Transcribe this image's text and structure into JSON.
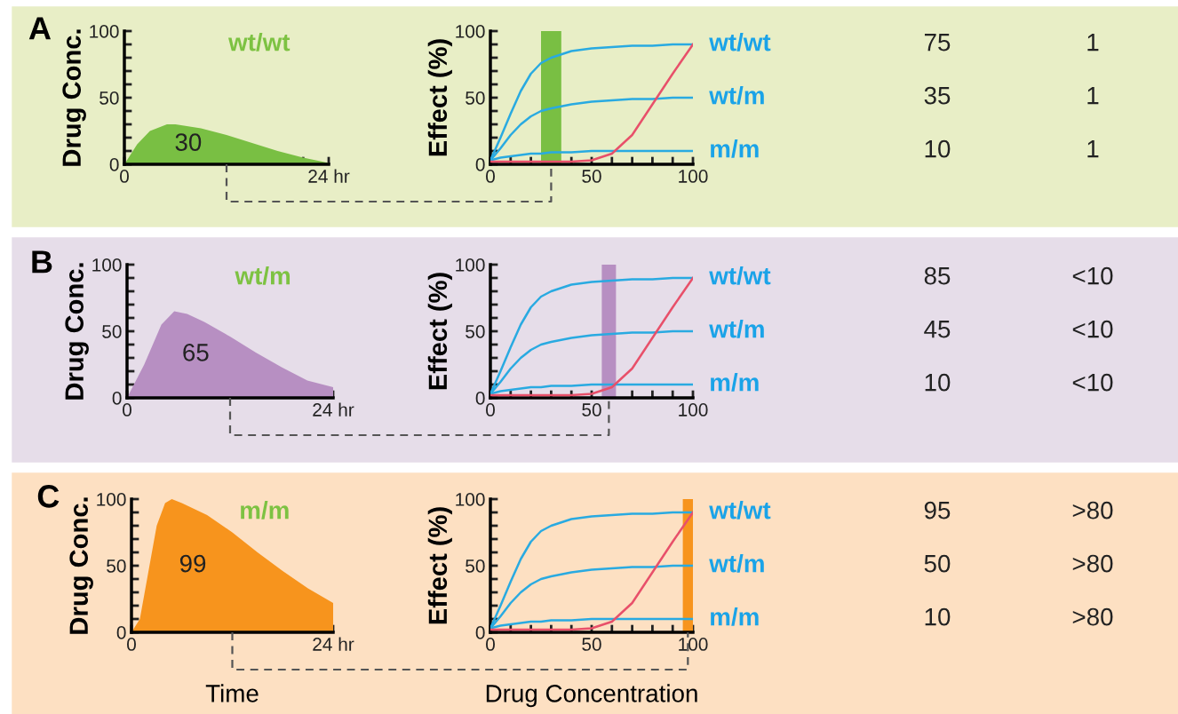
{
  "chart_data": [
    {
      "type": "area",
      "ylabel": "Drug Conc.",
      "annotations": [
        "A",
        "wt/wt",
        "30"
      ],
      "xlim": [
        0,
        24
      ],
      "ylim": [
        0,
        100
      ],
      "xticks": [
        0,
        {
          "value": 3,
          "label": null
        },
        {
          "value": 6,
          "label": null
        },
        {
          "value": 9,
          "label": null
        },
        {
          "value": 12,
          "label": null
        },
        {
          "value": 15,
          "label": null
        },
        {
          "value": 18,
          "label": null
        },
        {
          "value": 21,
          "label": null
        },
        {
          "value": 24,
          "label": "24 hr"
        }
      ],
      "yticks": [
        0,
        {
          "value": 10,
          "label": null
        },
        {
          "value": 20,
          "label": null
        },
        {
          "value": 30,
          "label": null
        },
        {
          "value": 40,
          "label": null
        },
        50,
        {
          "value": 60,
          "label": null
        },
        {
          "value": 70,
          "label": null
        },
        {
          "value": 80,
          "label": null
        },
        {
          "value": 90,
          "label": null
        },
        100
      ],
      "x": [
        0,
        1.5,
        3,
        5,
        6,
        9,
        12,
        15,
        18,
        21,
        24
      ],
      "series": [
        {
          "color": "#79bf43",
          "values": [
            0,
            15,
            25,
            30,
            30,
            27,
            22,
            16,
            10,
            5,
            1
          ]
        }
      ],
      "grid": false,
      "legend": false
    },
    {
      "type": "line",
      "ylabel": "Effect (%)",
      "annotations": [
        "75",
        "1",
        "35",
        "1",
        "10",
        "1"
      ],
      "xlim": [
        0,
        100
      ],
      "ylim": [
        0,
        100
      ],
      "xticks": [
        0,
        {
          "value": 10,
          "label": null
        },
        {
          "value": 20,
          "label": null
        },
        {
          "value": 30,
          "label": null
        },
        {
          "value": 40,
          "label": null
        },
        50,
        {
          "value": 60,
          "label": null
        },
        {
          "value": 70,
          "label": null
        },
        {
          "value": 80,
          "label": null
        },
        {
          "value": 90,
          "label": null
        },
        100
      ],
      "yticks": [
        0,
        {
          "value": 10,
          "label": null
        },
        {
          "value": 20,
          "label": null
        },
        {
          "value": 30,
          "label": null
        },
        {
          "value": 40,
          "label": null
        },
        50,
        {
          "value": 60,
          "label": null
        },
        {
          "value": 70,
          "label": null
        },
        {
          "value": 80,
          "label": null
        },
        {
          "value": 90,
          "label": null
        },
        100
      ],
      "x": [
        0,
        5,
        10,
        15,
        20,
        25,
        30,
        40,
        50,
        60,
        70,
        80,
        90,
        100
      ],
      "series": [
        {
          "name": "wt/wt",
          "color": "#29aae1",
          "values": [
            3,
            20,
            38,
            55,
            68,
            76,
            80,
            85,
            87,
            88,
            89,
            89,
            90,
            90
          ]
        },
        {
          "name": "wt/m",
          "color": "#29aae1",
          "values": [
            3,
            12,
            22,
            30,
            36,
            40,
            42,
            45,
            47,
            48,
            49,
            49,
            50,
            50
          ]
        },
        {
          "name": "m/m",
          "color": "#29aae1",
          "values": [
            3,
            5,
            6,
            7,
            8,
            8,
            9,
            9,
            10,
            10,
            10,
            10,
            10,
            10
          ]
        },
        {
          "color": "#e8506a",
          "values": [
            2,
            2,
            2,
            2,
            2,
            2,
            2,
            2,
            3,
            8,
            22,
            45,
            68,
            90
          ]
        }
      ],
      "bands": [
        {
          "axis": "x",
          "from": 25,
          "to": 35,
          "color": "#79bf43"
        }
      ],
      "marker": "none",
      "line_style": "solid",
      "grid": false,
      "legend": false
    },
    {
      "type": "area",
      "ylabel": "Drug Conc.",
      "annotations": [
        "B",
        "wt/m",
        "65"
      ],
      "xlim": [
        0,
        24
      ],
      "ylim": [
        0,
        100
      ],
      "xticks": [
        0,
        {
          "value": 3,
          "label": null
        },
        {
          "value": 6,
          "label": null
        },
        {
          "value": 9,
          "label": null
        },
        {
          "value": 12,
          "label": null
        },
        {
          "value": 15,
          "label": null
        },
        {
          "value": 18,
          "label": null
        },
        {
          "value": 21,
          "label": null
        },
        {
          "value": 24,
          "label": "24 hr"
        }
      ],
      "yticks": [
        0,
        {
          "value": 10,
          "label": null
        },
        {
          "value": 20,
          "label": null
        },
        {
          "value": 30,
          "label": null
        },
        {
          "value": 40,
          "label": null
        },
        50,
        {
          "value": 60,
          "label": null
        },
        {
          "value": 70,
          "label": null
        },
        {
          "value": 80,
          "label": null
        },
        {
          "value": 90,
          "label": null
        },
        100
      ],
      "x": [
        0,
        2,
        4,
        5.5,
        7,
        9,
        12,
        15,
        18,
        21,
        24
      ],
      "series": [
        {
          "color": "#b78fc2",
          "values": [
            0,
            25,
            55,
            65,
            63,
            57,
            46,
            34,
            23,
            13,
            8
          ]
        }
      ],
      "grid": false,
      "legend": false
    },
    {
      "type": "line",
      "ylabel": "Effect (%)",
      "annotations": [
        "85",
        "<10",
        "45",
        "<10",
        "10",
        "<10"
      ],
      "xlim": [
        0,
        100
      ],
      "ylim": [
        0,
        100
      ],
      "xticks": [
        0,
        {
          "value": 10,
          "label": null
        },
        {
          "value": 20,
          "label": null
        },
        {
          "value": 30,
          "label": null
        },
        {
          "value": 40,
          "label": null
        },
        50,
        {
          "value": 60,
          "label": null
        },
        {
          "value": 70,
          "label": null
        },
        {
          "value": 80,
          "label": null
        },
        {
          "value": 90,
          "label": null
        },
        100
      ],
      "yticks": [
        0,
        {
          "value": 10,
          "label": null
        },
        {
          "value": 20,
          "label": null
        },
        {
          "value": 30,
          "label": null
        },
        {
          "value": 40,
          "label": null
        },
        50,
        {
          "value": 60,
          "label": null
        },
        {
          "value": 70,
          "label": null
        },
        {
          "value": 80,
          "label": null
        },
        {
          "value": 90,
          "label": null
        },
        100
      ],
      "x": [
        0,
        5,
        10,
        15,
        20,
        25,
        30,
        40,
        50,
        60,
        70,
        80,
        90,
        100
      ],
      "series": [
        {
          "name": "wt/wt",
          "color": "#29aae1",
          "values": [
            3,
            20,
            38,
            55,
            68,
            76,
            80,
            85,
            87,
            88,
            89,
            89,
            90,
            90
          ]
        },
        {
          "name": "wt/m",
          "color": "#29aae1",
          "values": [
            3,
            12,
            22,
            30,
            36,
            40,
            42,
            45,
            47,
            48,
            49,
            49,
            50,
            50
          ]
        },
        {
          "name": "m/m",
          "color": "#29aae1",
          "values": [
            3,
            5,
            6,
            7,
            8,
            8,
            9,
            9,
            10,
            10,
            10,
            10,
            10,
            10
          ]
        },
        {
          "color": "#e8506a",
          "values": [
            2,
            2,
            2,
            2,
            2,
            2,
            2,
            2,
            3,
            8,
            22,
            45,
            68,
            90
          ]
        }
      ],
      "bands": [
        {
          "axis": "x",
          "from": 55,
          "to": 62,
          "color": "#b78fc2"
        }
      ],
      "marker": "none",
      "line_style": "solid",
      "grid": false,
      "legend": false
    },
    {
      "type": "area",
      "xlabel": "Time",
      "ylabel": "Drug Conc.",
      "annotations": [
        "C",
        "m/m",
        "99"
      ],
      "xlim": [
        0,
        24
      ],
      "ylim": [
        0,
        100
      ],
      "xticks": [
        0,
        {
          "value": 3,
          "label": null
        },
        {
          "value": 6,
          "label": null
        },
        {
          "value": 9,
          "label": null
        },
        {
          "value": 12,
          "label": null
        },
        {
          "value": 15,
          "label": null
        },
        {
          "value": 18,
          "label": null
        },
        {
          "value": 21,
          "label": null
        },
        {
          "value": 24,
          "label": "24 hr"
        }
      ],
      "yticks": [
        0,
        {
          "value": 10,
          "label": null
        },
        {
          "value": 20,
          "label": null
        },
        {
          "value": 30,
          "label": null
        },
        {
          "value": 40,
          "label": null
        },
        50,
        {
          "value": 60,
          "label": null
        },
        {
          "value": 70,
          "label": null
        },
        {
          "value": 80,
          "label": null
        },
        {
          "value": 90,
          "label": null
        },
        100
      ],
      "x": [
        0,
        1,
        2,
        3,
        4,
        4.8,
        6,
        9,
        12,
        15,
        18,
        21,
        24
      ],
      "series": [
        {
          "color": "#f7941d",
          "values": [
            0,
            10,
            45,
            80,
            97,
            100,
            97,
            88,
            75,
            60,
            46,
            33,
            22
          ]
        }
      ],
      "grid": false,
      "legend": false
    },
    {
      "type": "line",
      "xlabel": "Drug Concentration",
      "ylabel": "Effect (%)",
      "annotations": [
        "95",
        ">80",
        "50",
        ">80",
        "10",
        ">80"
      ],
      "xlim": [
        0,
        100
      ],
      "ylim": [
        0,
        100
      ],
      "xticks": [
        0,
        {
          "value": 10,
          "label": null
        },
        {
          "value": 20,
          "label": null
        },
        {
          "value": 30,
          "label": null
        },
        {
          "value": 40,
          "label": null
        },
        50,
        {
          "value": 60,
          "label": null
        },
        {
          "value": 70,
          "label": null
        },
        {
          "value": 80,
          "label": null
        },
        {
          "value": 90,
          "label": null
        },
        100
      ],
      "yticks": [
        0,
        {
          "value": 10,
          "label": null
        },
        {
          "value": 20,
          "label": null
        },
        {
          "value": 30,
          "label": null
        },
        {
          "value": 40,
          "label": null
        },
        50,
        {
          "value": 60,
          "label": null
        },
        {
          "value": 70,
          "label": null
        },
        {
          "value": 80,
          "label": null
        },
        {
          "value": 90,
          "label": null
        },
        100
      ],
      "x": [
        0,
        5,
        10,
        15,
        20,
        25,
        30,
        40,
        50,
        60,
        70,
        80,
        90,
        100
      ],
      "series": [
        {
          "name": "wt/wt",
          "color": "#29aae1",
          "values": [
            3,
            20,
            38,
            55,
            68,
            76,
            80,
            85,
            87,
            88,
            89,
            89,
            90,
            90
          ]
        },
        {
          "name": "wt/m",
          "color": "#29aae1",
          "values": [
            3,
            12,
            22,
            30,
            36,
            40,
            42,
            45,
            47,
            48,
            49,
            49,
            50,
            50
          ]
        },
        {
          "name": "m/m",
          "color": "#29aae1",
          "values": [
            3,
            5,
            6,
            7,
            8,
            8,
            9,
            9,
            10,
            10,
            10,
            10,
            10,
            10
          ]
        },
        {
          "color": "#e8506a",
          "values": [
            2,
            2,
            2,
            2,
            2,
            2,
            2,
            2,
            3,
            8,
            22,
            45,
            68,
            90
          ]
        }
      ],
      "bands": [
        {
          "axis": "x",
          "from": 95,
          "to": 100,
          "color": "#f7941d"
        }
      ],
      "marker": "none",
      "line_style": "solid",
      "grid": false,
      "legend": false
    }
  ]
}
